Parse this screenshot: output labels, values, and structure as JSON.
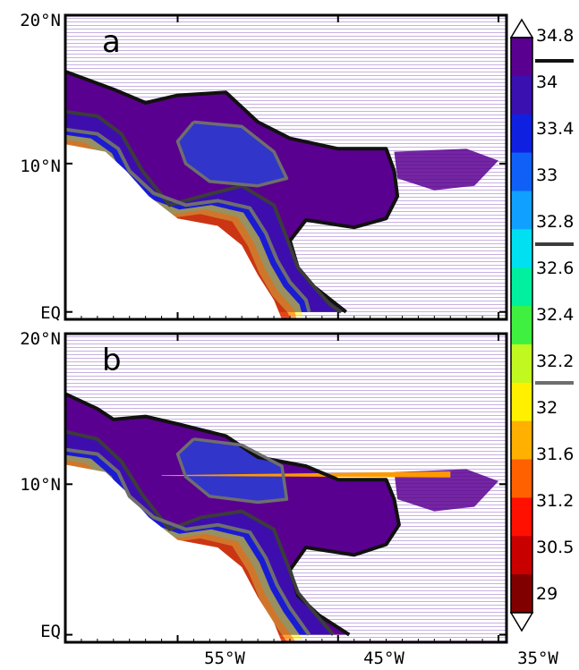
{
  "chart_data": [
    {
      "type": "heatmap",
      "panel_label": "a",
      "x_range": [
        -62,
        -34.5
      ],
      "y_range": [
        -0.5,
        20
      ],
      "x_ticks": [
        -55,
        -45,
        -35
      ],
      "y_ticks": [
        20,
        10,
        0
      ],
      "contours": {
        "black": [
          [
            -62,
            16.2
          ],
          [
            -59,
            15.0
          ],
          [
            -57,
            14.1
          ],
          [
            -55,
            14.6
          ],
          [
            -52,
            14.8
          ],
          [
            -50,
            12.8
          ],
          [
            -48,
            11.7
          ],
          [
            -45,
            11.0
          ],
          [
            -42,
            11.0
          ],
          [
            -41.5,
            9.5
          ],
          [
            -41.3,
            7.8
          ],
          [
            -42,
            6.3
          ],
          [
            -44,
            5.7
          ],
          [
            -47,
            6.2
          ],
          [
            -48,
            4.8
          ],
          [
            -47.5,
            3.0
          ],
          [
            -46.5,
            1.7
          ],
          [
            -44.5,
            0
          ]
        ],
        "dark_gray": [
          [
            -62,
            13.5
          ],
          [
            -60,
            13.2
          ],
          [
            -58.5,
            12.0
          ],
          [
            -57.2,
            9.5
          ],
          [
            -55.5,
            7.2
          ],
          [
            -53.5,
            7.8
          ],
          [
            -51,
            8.5
          ],
          [
            -49,
            7.2
          ],
          [
            -48.2,
            5.0
          ],
          [
            -47.5,
            3.0
          ],
          [
            -46.5,
            1.7
          ],
          [
            -45.5,
            0.5
          ],
          [
            -44.8,
            0
          ]
        ],
        "gray": [
          [
            -62,
            12.3
          ],
          [
            -60,
            12.0
          ],
          [
            -58.7,
            11.0
          ],
          [
            -58,
            9.5
          ],
          [
            -56.5,
            8.0
          ],
          [
            -54.5,
            7.2
          ],
          [
            -52.5,
            7.5
          ],
          [
            -50.5,
            7.0
          ],
          [
            -49.5,
            5.3
          ],
          [
            -48.8,
            3.5
          ],
          [
            -48,
            2.0
          ],
          [
            -47,
            0.8
          ],
          [
            -46.8,
            0
          ]
        ],
        "inner_gray": [
          [
            -54,
            12.8
          ],
          [
            -51,
            12.5
          ],
          [
            -49,
            10.8
          ],
          [
            -48.2,
            9.0
          ],
          [
            -50,
            8.5
          ],
          [
            -53,
            8.8
          ],
          [
            -54.5,
            10.0
          ],
          [
            -55,
            11.5
          ],
          [
            -54,
            12.8
          ]
        ]
      }
    },
    {
      "type": "heatmap",
      "panel_label": "b",
      "x_range": [
        -62,
        -34.5
      ],
      "y_range": [
        -0.5,
        20
      ],
      "x_ticks": [
        -55,
        -45,
        -35
      ],
      "y_ticks": [
        20,
        10,
        0
      ],
      "x_tick_labels": [
        "55°W",
        "45°W",
        "35°W"
      ],
      "contours": {
        "black": [
          [
            -62,
            16.0
          ],
          [
            -60,
            15.0
          ],
          [
            -59,
            14.3
          ],
          [
            -57,
            14.5
          ],
          [
            -55,
            14.0
          ],
          [
            -52,
            13.2
          ],
          [
            -50,
            11.8
          ],
          [
            -47,
            11.2
          ],
          [
            -45,
            10.3
          ],
          [
            -42,
            10.3
          ],
          [
            -41.5,
            9.0
          ],
          [
            -41.2,
            7.3
          ],
          [
            -42,
            6.0
          ],
          [
            -44,
            5.3
          ],
          [
            -47,
            5.8
          ],
          [
            -48,
            4.3
          ],
          [
            -47.5,
            2.6
          ],
          [
            -46.2,
            1.3
          ],
          [
            -44.3,
            0
          ]
        ],
        "dark_gray": [
          [
            -62,
            13.5
          ],
          [
            -60,
            13.0
          ],
          [
            -58.5,
            11.5
          ],
          [
            -57.2,
            9.3
          ],
          [
            -55.5,
            7.0
          ],
          [
            -53.5,
            7.8
          ],
          [
            -51,
            8.2
          ],
          [
            -49,
            7.0
          ],
          [
            -48.2,
            4.8
          ],
          [
            -47.5,
            2.8
          ],
          [
            -46.5,
            1.5
          ],
          [
            -45.3,
            0
          ]
        ],
        "gray": [
          [
            -62,
            12.3
          ],
          [
            -60,
            12.0
          ],
          [
            -58.7,
            10.8
          ],
          [
            -58,
            9.2
          ],
          [
            -56.5,
            7.8
          ],
          [
            -54.5,
            7.0
          ],
          [
            -52.5,
            7.3
          ],
          [
            -50.5,
            6.8
          ],
          [
            -49.5,
            5.1
          ],
          [
            -48.8,
            3.3
          ],
          [
            -48,
            1.8
          ],
          [
            -46.8,
            0
          ]
        ],
        "inner_gray": [
          [
            -54,
            13.0
          ],
          [
            -51,
            12.6
          ],
          [
            -48.5,
            11.2
          ],
          [
            -48.2,
            9.0
          ],
          [
            -50,
            8.8
          ],
          [
            -53,
            9.2
          ],
          [
            -54.5,
            10.5
          ],
          [
            -55,
            12.0
          ],
          [
            -54,
            13.0
          ]
        ]
      },
      "artifact_streak": {
        "x": [
          -56,
          -38
        ],
        "y": 10.6,
        "color": "#ff9900"
      }
    }
  ],
  "latitude_labels": {
    "a": [
      "20°N",
      "10°N",
      "EQ"
    ],
    "b": [
      "20°N",
      "10°N",
      "EQ"
    ]
  },
  "colorbar": {
    "levels": [
      "34.8",
      "34",
      "33.4",
      "33",
      "32.8",
      "32.6",
      "32.4",
      "32.2",
      "32",
      "31.6",
      "31.2",
      "30.5",
      "29"
    ],
    "colors": [
      "#5a0090",
      "#3a10b0",
      "#1020e0",
      "#1060f8",
      "#10a0ff",
      "#00e0f0",
      "#00f0a0",
      "#40f040",
      "#c0f820",
      "#fff000",
      "#ffb000",
      "#ff6000",
      "#ff1000",
      "#c80000",
      "#800000"
    ],
    "contour_keys": [
      {
        "value": "34.8",
        "color": "#111111"
      },
      {
        "value": "32.8",
        "color": "#3c3c3c"
      },
      {
        "value": "32.2",
        "color": "#6e6e6e"
      }
    ]
  }
}
